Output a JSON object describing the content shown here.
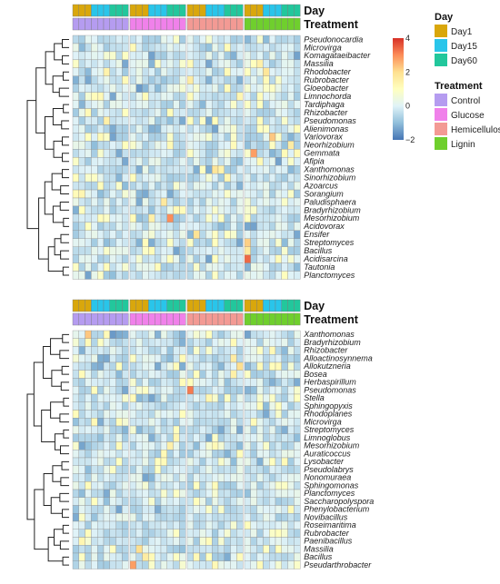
{
  "chart_data": [
    {
      "type": "heatmap",
      "panel": "top",
      "column_annotations": [
        {
          "name": "Day",
          "levels": [
            "Day1",
            "Day15",
            "Day60"
          ],
          "per_column": [
            "Day1",
            "Day1",
            "Day1",
            "Day15",
            "Day15",
            "Day15",
            "Day60",
            "Day60",
            "Day60"
          ]
        },
        {
          "name": "Treatment",
          "levels": [
            "Control",
            "Glucose",
            "Hemicellulose",
            "Lignin"
          ],
          "per_group": [
            "Control",
            "Glucose",
            "Hemicellulose",
            "Lignin"
          ]
        }
      ],
      "columns_per_group": 9,
      "rows": [
        "Pseudonocardia",
        "Microvirga",
        "Komagataeibacter",
        "Massilia",
        "Rhodobacter",
        "Rubrobacter",
        "Gloeobacter",
        "Limnochorda",
        "Tardiphaga",
        "Rhizobacter",
        "Pseudomonas",
        "Alienimonas",
        "Variovorax",
        "Neorhizobium",
        "Gemmata",
        "Afipia",
        "Xanthomonas",
        "Sinorhizobium",
        "Azoarcus",
        "Sorangium",
        "Paludisphaera",
        "Bradyrhizobium",
        "Mesorhizobium",
        "Acidovorax",
        "Ensifer",
        "Streptomyces",
        "Bacillus",
        "Acidisarcina",
        "Tautonia",
        "Planctomyces"
      ],
      "highlights": [
        {
          "row": 3,
          "col": 29,
          "z": 1.5
        },
        {
          "row": 4,
          "col": 5,
          "z": 1.4
        },
        {
          "row": 4,
          "col": 30,
          "z": 1.8
        },
        {
          "row": 5,
          "col": 18,
          "z": 1.6
        },
        {
          "row": 6,
          "col": 10,
          "z": -1.5
        },
        {
          "row": 7,
          "col": 26,
          "z": 1.3
        },
        {
          "row": 9,
          "col": 2,
          "z": 1.2
        },
        {
          "row": 10,
          "col": 5,
          "z": 1.5
        },
        {
          "row": 12,
          "col": 31,
          "z": 2.3
        },
        {
          "row": 13,
          "col": 34,
          "z": 1.6
        },
        {
          "row": 14,
          "col": 28,
          "z": 2.8
        },
        {
          "row": 15,
          "col": 29,
          "z": 1.2
        },
        {
          "row": 16,
          "col": 22,
          "z": 1.8
        },
        {
          "row": 16,
          "col": 23,
          "z": 1.4
        },
        {
          "row": 17,
          "col": 24,
          "z": 1.3
        },
        {
          "row": 19,
          "col": 1,
          "z": 1.3
        },
        {
          "row": 20,
          "col": 14,
          "z": 1.7
        },
        {
          "row": 21,
          "col": 16,
          "z": 1.2
        },
        {
          "row": 22,
          "col": 12,
          "z": 1.5
        },
        {
          "row": 22,
          "col": 15,
          "z": 3.0
        },
        {
          "row": 24,
          "col": 19,
          "z": 1.9
        },
        {
          "row": 25,
          "col": 27,
          "z": 2.2
        },
        {
          "row": 26,
          "col": 27,
          "z": 1.7
        },
        {
          "row": 27,
          "col": 27,
          "z": 3.4
        },
        {
          "row": 28,
          "col": 5,
          "z": 1.1
        },
        {
          "row": 11,
          "col": 12,
          "z": -1.2
        },
        {
          "row": 8,
          "col": 20,
          "z": -1.1
        }
      ]
    },
    {
      "type": "heatmap",
      "panel": "bottom",
      "column_annotations": [
        {
          "name": "Day",
          "levels": [
            "Day1",
            "Day15",
            "Day60"
          ],
          "per_column": [
            "Day1",
            "Day1",
            "Day1",
            "Day15",
            "Day15",
            "Day15",
            "Day60",
            "Day60",
            "Day60"
          ]
        },
        {
          "name": "Treatment",
          "levels": [
            "Control",
            "Glucose",
            "Hemicellulose",
            "Lignin"
          ],
          "per_group": [
            "Control",
            "Glucose",
            "Hemicellulose",
            "Lignin"
          ]
        }
      ],
      "columns_per_group": 9,
      "rows": [
        "Xanthomonas",
        "Bradyrhizobium",
        "Rhizobacter",
        "Alloactinosynnema",
        "Allokutzneria",
        "Bosea",
        "Herbaspirillum",
        "Pseudomonas",
        "Stella",
        "Sphingopyxis",
        "Rhodoplanes",
        "Microvirga",
        "Streptomyces",
        "Limnoglobus",
        "Mesorhizobium",
        "Auraticoccus",
        "Lysobacter",
        "Pseudolabrys",
        "Nonomuraea",
        "Sphingomonas",
        "Planctomyces",
        "Saccharopolyspora",
        "Phenylobacterium",
        "Novibacillus",
        "Roseimaritima",
        "Rubrobacter",
        "Paenibacillus",
        "Massilia",
        "Bacillus",
        "Pseudarthrobacter"
      ],
      "highlights": [
        {
          "row": 0,
          "col": 2,
          "z": 2.3
        },
        {
          "row": 0,
          "col": 6,
          "z": -1.5
        },
        {
          "row": 2,
          "col": 31,
          "z": 1.2
        },
        {
          "row": 3,
          "col": 25,
          "z": 1.6
        },
        {
          "row": 4,
          "col": 26,
          "z": 2.0
        },
        {
          "row": 5,
          "col": 25,
          "z": 1.5
        },
        {
          "row": 7,
          "col": 18,
          "z": 3.2
        },
        {
          "row": 8,
          "col": 21,
          "z": 1.3
        },
        {
          "row": 9,
          "col": 29,
          "z": 1.1
        },
        {
          "row": 13,
          "col": 16,
          "z": 1.3
        },
        {
          "row": 14,
          "col": 15,
          "z": 1.5
        },
        {
          "row": 15,
          "col": 14,
          "z": 1.2
        },
        {
          "row": 16,
          "col": 13,
          "z": 1.0
        },
        {
          "row": 21,
          "col": 3,
          "z": 1.0
        },
        {
          "row": 26,
          "col": 1,
          "z": 1.3
        },
        {
          "row": 27,
          "col": 10,
          "z": 2.0
        },
        {
          "row": 28,
          "col": 11,
          "z": 1.6
        },
        {
          "row": 29,
          "col": 9,
          "z": 2.8
        },
        {
          "row": 19,
          "col": 22,
          "z": 1.1
        }
      ]
    }
  ],
  "legend": {
    "color_scale": {
      "min": -2,
      "max": 4,
      "ticks": [
        4,
        2,
        0,
        -2
      ],
      "colors": [
        "#4575b4",
        "#91bfdb",
        "#e0f3f8",
        "#ffffbf",
        "#fee090",
        "#fc8d59",
        "#d73027"
      ]
    },
    "day": {
      "title": "Day",
      "items": [
        {
          "label": "Day1",
          "color": "#d9a70c"
        },
        {
          "label": "Day15",
          "color": "#29c5ea"
        },
        {
          "label": "Day60",
          "color": "#22c79c"
        }
      ]
    },
    "treatment": {
      "title": "Treatment",
      "items": [
        {
          "label": "Control",
          "color": "#b59cf0"
        },
        {
          "label": "Glucose",
          "color": "#f081ea"
        },
        {
          "label": "Hemicellulose",
          "color": "#f39a94"
        },
        {
          "label": "Lignin",
          "color": "#6fcf2d"
        }
      ]
    }
  }
}
